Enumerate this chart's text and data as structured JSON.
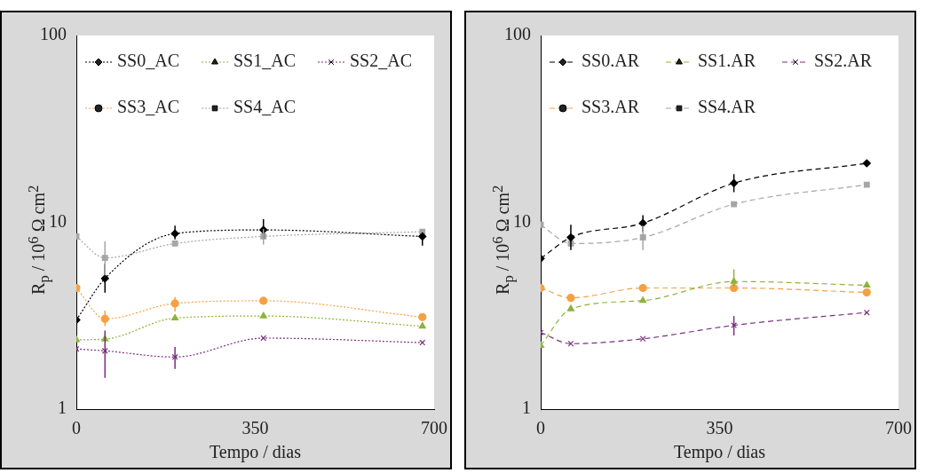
{
  "chart_data": [
    {
      "type": "line",
      "xlabel": "Tempo / dias",
      "ylabel": "R$_{p}$ / 10$^{6}$ Ω cm$^{2}$",
      "log": "y",
      "xlim": [
        0,
        700
      ],
      "xticks": [
        0,
        350,
        700
      ],
      "ylim": [
        1,
        100
      ],
      "yticks": [
        1,
        10,
        100
      ],
      "legend": "top",
      "line_style": "dotted",
      "x": [
        0,
        56,
        193,
        366,
        677
      ],
      "series": [
        {
          "name": "SS0_AC",
          "color": "#000000",
          "marker": "diamond",
          "values": [
            3.0,
            5.0,
            8.7,
            9.1,
            8.4
          ],
          "errors": [
            null,
            [
              4.2,
              6.0
            ],
            [
              8.1,
              9.6
            ],
            [
              8.2,
              10.4
            ],
            [
              7.5,
              8.8
            ]
          ]
        },
        {
          "name": "SS1_AC",
          "color": "#8db33a",
          "marker": "triangle",
          "values": [
            2.35,
            2.37,
            3.07,
            3.15,
            2.78
          ],
          "errors": [
            null,
            null,
            null,
            null,
            null
          ]
        },
        {
          "name": "SS2_AC",
          "color": "#7a2f7e",
          "marker": "cross",
          "values": [
            2.1,
            2.05,
            1.9,
            2.4,
            2.27
          ],
          "errors": [
            null,
            [
              1.47,
              2.63
            ],
            [
              1.64,
              2.15
            ],
            null,
            null
          ]
        },
        {
          "name": "SS3_AC",
          "color": "#f5a142",
          "marker": "circle",
          "values": [
            4.45,
            3.04,
            3.68,
            3.8,
            3.11
          ],
          "errors": [
            null,
            [
              2.78,
              3.37
            ],
            [
              3.33,
              3.98
            ],
            null,
            null
          ]
        },
        {
          "name": "SS4_AC",
          "color": "#a6a6a6",
          "marker": "square",
          "values": [
            8.4,
            6.45,
            7.7,
            8.4,
            8.9
          ],
          "errors": [
            null,
            [
              5.2,
              7.9
            ],
            null,
            [
              7.6,
              9.2
            ],
            null
          ]
        }
      ]
    },
    {
      "type": "line",
      "xlabel": "Tempo / dias",
      "ylabel": "R$_{p}$ / 10$^{6}$ Ω cm$^{2}$",
      "log": "y",
      "xlim": [
        0,
        700
      ],
      "xticks": [
        0,
        350,
        700
      ],
      "ylim": [
        1,
        100
      ],
      "yticks": [
        1,
        10,
        100
      ],
      "legend": "top",
      "line_style": "dashed",
      "x": [
        0,
        59,
        200,
        378,
        638
      ],
      "series": [
        {
          "name": "SS0.AR",
          "color": "#000000",
          "marker": "diamond",
          "values": [
            6.4,
            8.3,
            9.9,
            16.2,
            20.7
          ],
          "errors": [
            null,
            [
              7.1,
              9.7
            ],
            [
              8.9,
              10.9
            ],
            [
              14.5,
              18.1
            ],
            null
          ]
        },
        {
          "name": "SS1.AR",
          "color": "#8db33a",
          "marker": "triangle",
          "values": [
            2.19,
            3.44,
            3.81,
            4.82,
            4.6
          ],
          "errors": [
            null,
            null,
            null,
            [
              4.5,
              5.6
            ],
            null
          ]
        },
        {
          "name": "SS2.AR",
          "color": "#7a2f7e",
          "marker": "cross",
          "values": [
            2.57,
            2.24,
            2.38,
            2.81,
            3.29
          ],
          "errors": [
            null,
            null,
            null,
            [
              2.48,
              3.15
            ],
            null
          ]
        },
        {
          "name": "SS3.AR",
          "color": "#f5a142",
          "marker": "circle",
          "values": [
            4.45,
            3.94,
            4.45,
            4.45,
            4.21
          ],
          "errors": [
            null,
            null,
            null,
            null,
            null
          ]
        },
        {
          "name": "SS4.AR",
          "color": "#a6a6a6",
          "marker": "square",
          "values": [
            9.7,
            7.7,
            8.3,
            12.5,
            15.9
          ],
          "errors": [
            null,
            null,
            [
              7.1,
              9.6
            ],
            null,
            null
          ]
        }
      ]
    }
  ]
}
